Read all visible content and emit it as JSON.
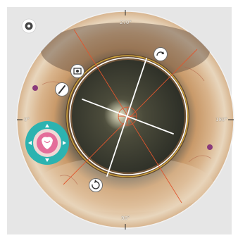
{
  "labels": {
    "top": "270°",
    "bottom": "90°",
    "left": "0°",
    "right": "180°"
  },
  "colors": {
    "background": "#e6e6e6",
    "sclera": "#d9c1a0",
    "iris_ring": "#d4a06a",
    "pupil": "#3a3b30",
    "guide_line": "#e0552d",
    "axis_line": "#ffffff",
    "selector_ring": "#2cb3b0",
    "selector_center": "#e46d9a",
    "marker": "#8a3b7a"
  },
  "icons": [
    "view-mode-icon",
    "rotate-top-right-icon",
    "image-icon",
    "pen-icon",
    "rotate-bottom-icon",
    "arrow-up-icon",
    "arrow-down-icon",
    "arrow-left-icon",
    "arrow-right-icon",
    "lens-marker-icon"
  ]
}
